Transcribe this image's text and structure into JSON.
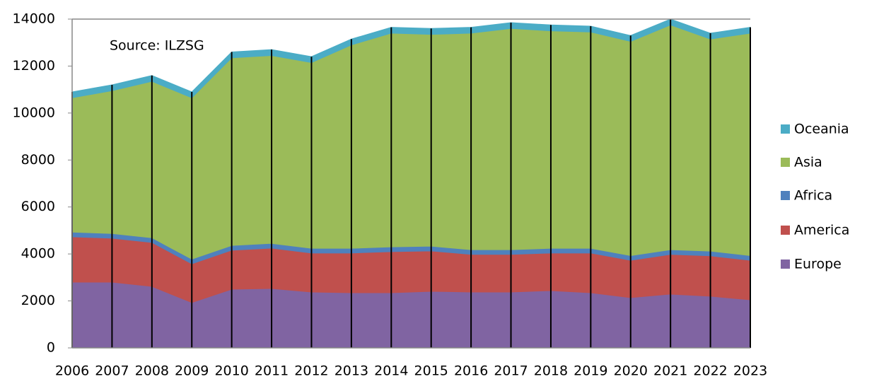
{
  "chart_data": {
    "type": "stacked_area",
    "annotation": "Source: ILZSG",
    "categories": [
      "2006",
      "2007",
      "2008",
      "2009",
      "2010",
      "2011",
      "2012",
      "2013",
      "2014",
      "2015",
      "2016",
      "2017",
      "2018",
      "2019",
      "2020",
      "2021",
      "2022",
      "2023"
    ],
    "series": [
      {
        "name": "Europe",
        "color": "#8064a2",
        "values": [
          2800,
          2800,
          2620,
          1930,
          2500,
          2530,
          2380,
          2350,
          2350,
          2410,
          2380,
          2380,
          2440,
          2350,
          2140,
          2290,
          2200,
          2050
        ]
      },
      {
        "name": "America",
        "color": "#c0504d",
        "values": [
          1930,
          1870,
          1870,
          1650,
          1660,
          1720,
          1660,
          1690,
          1750,
          1720,
          1600,
          1600,
          1600,
          1690,
          1590,
          1690,
          1720,
          1680
        ]
      },
      {
        "name": "Africa",
        "color": "#4f81bd",
        "values": [
          200,
          200,
          200,
          200,
          200,
          200,
          200,
          200,
          200,
          200,
          200,
          200,
          200,
          200,
          200,
          200,
          200,
          200
        ]
      },
      {
        "name": "Asia",
        "color": "#9bbb59",
        "values": [
          5720,
          6080,
          6660,
          6870,
          7990,
          8000,
          7910,
          8660,
          9100,
          9020,
          9220,
          9420,
          9260,
          9210,
          9120,
          9570,
          9030,
          9470
        ]
      },
      {
        "name": "Oceania",
        "color": "#4bacc6",
        "values": [
          250,
          250,
          250,
          250,
          250,
          250,
          250,
          250,
          250,
          250,
          250,
          250,
          250,
          250,
          250,
          250,
          250,
          250
        ]
      }
    ],
    "ylim": [
      0,
      14000
    ],
    "yticks": [
      0,
      2000,
      4000,
      6000,
      8000,
      10000,
      12000,
      14000
    ],
    "legend": "right"
  }
}
